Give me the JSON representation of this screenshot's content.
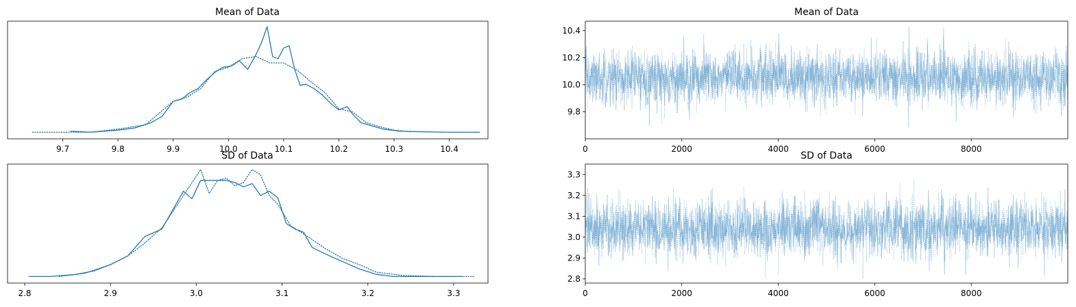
{
  "chart_data": [
    {
      "type": "line",
      "subtype": "density",
      "title": "Mean of Data",
      "xlim": [
        9.6,
        10.47
      ],
      "xticks": [
        9.7,
        9.8,
        9.9,
        10.0,
        10.1,
        10.2,
        10.3,
        10.4
      ],
      "xtick_labels": [
        "9.7",
        "9.8",
        "9.9",
        "10.0",
        "10.1",
        "10.2",
        "10.3",
        "10.4"
      ],
      "yaxis_visible": false,
      "color": "#1f77b4",
      "series": [
        {
          "linestyle": "solid",
          "x": [
            9.714,
            9.75,
            9.8,
            9.83,
            9.86,
            9.88,
            9.9,
            9.915,
            9.93,
            9.945,
            9.96,
            9.975,
            9.99,
            10.005,
            10.02,
            10.035,
            10.05,
            10.06,
            10.07,
            10.08,
            10.09,
            10.1,
            10.11,
            10.12,
            10.13,
            10.14,
            10.155,
            10.17,
            10.185,
            10.2,
            10.215,
            10.225,
            10.24,
            10.26,
            10.28,
            10.31,
            10.35,
            10.4,
            10.455
          ],
          "y": [
            0.02,
            0.01,
            0.03,
            0.05,
            0.1,
            0.16,
            0.3,
            0.32,
            0.38,
            0.42,
            0.5,
            0.57,
            0.62,
            0.63,
            0.68,
            0.6,
            0.74,
            0.85,
            1.0,
            0.72,
            0.7,
            0.8,
            0.82,
            0.6,
            0.45,
            0.46,
            0.42,
            0.36,
            0.28,
            0.22,
            0.25,
            0.18,
            0.1,
            0.07,
            0.04,
            0.02,
            0.015,
            0.01,
            0.01
          ]
        },
        {
          "linestyle": "dotted",
          "x": [
            9.645,
            9.7,
            9.75,
            9.8,
            9.85,
            9.9,
            9.925,
            9.95,
            9.975,
            10.0,
            10.025,
            10.05,
            10.075,
            10.1,
            10.125,
            10.15,
            10.175,
            10.2,
            10.225,
            10.25,
            10.275,
            10.3,
            10.33
          ],
          "y": [
            0.01,
            0.01,
            0.01,
            0.04,
            0.08,
            0.3,
            0.34,
            0.42,
            0.58,
            0.62,
            0.7,
            0.72,
            0.66,
            0.66,
            0.59,
            0.48,
            0.38,
            0.23,
            0.2,
            0.1,
            0.06,
            0.03,
            0.015
          ]
        }
      ]
    },
    {
      "type": "line",
      "subtype": "trace",
      "title": "Mean of Data",
      "xlim": [
        0,
        10000
      ],
      "xticks": [
        0,
        2000,
        4000,
        6000,
        8000
      ],
      "xtick_labels": [
        "0",
        "2000",
        "4000",
        "6000",
        "8000"
      ],
      "ylim": [
        9.6,
        10.47
      ],
      "yticks": [
        9.8,
        10.0,
        10.2,
        10.4
      ],
      "ytick_labels": [
        "9.8",
        "10.0",
        "10.2",
        "10.4"
      ],
      "color": "#1f77b4",
      "draws": 10000,
      "chains": 2,
      "center": 10.05,
      "sd": 0.1,
      "min": 9.645,
      "max": 10.455
    },
    {
      "type": "line",
      "subtype": "density",
      "title": "SD of Data",
      "xlim": [
        2.78,
        3.34
      ],
      "xticks": [
        2.8,
        2.9,
        3.0,
        3.1,
        3.2,
        3.3
      ],
      "xtick_labels": [
        "2.8",
        "2.9",
        "3.0",
        "3.1",
        "3.2",
        "3.3"
      ],
      "yaxis_visible": false,
      "color": "#1f77b4",
      "series": [
        {
          "linestyle": "solid",
          "x": [
            2.805,
            2.83,
            2.86,
            2.88,
            2.9,
            2.92,
            2.94,
            2.96,
            2.975,
            2.985,
            2.995,
            3.005,
            3.02,
            3.035,
            3.045,
            3.055,
            3.065,
            3.075,
            3.085,
            3.095,
            3.105,
            3.115,
            3.125,
            3.135,
            3.15,
            3.17,
            3.19,
            3.21,
            3.23,
            3.26,
            3.31
          ],
          "y": [
            0.01,
            0.01,
            0.03,
            0.06,
            0.12,
            0.2,
            0.38,
            0.45,
            0.66,
            0.8,
            0.73,
            0.9,
            0.9,
            0.9,
            0.88,
            0.84,
            0.87,
            0.76,
            0.8,
            0.74,
            0.5,
            0.45,
            0.42,
            0.28,
            0.22,
            0.15,
            0.08,
            0.03,
            0.01,
            0.01,
            0.01
          ]
        },
        {
          "linestyle": "dotted",
          "x": [
            2.84,
            2.87,
            2.9,
            2.92,
            2.94,
            2.96,
            2.98,
            2.995,
            3.005,
            3.015,
            3.025,
            3.035,
            3.045,
            3.055,
            3.065,
            3.075,
            3.085,
            3.095,
            3.11,
            3.13,
            3.15,
            3.17,
            3.19,
            3.21,
            3.24,
            3.28,
            3.325
          ],
          "y": [
            0.01,
            0.04,
            0.12,
            0.2,
            0.32,
            0.46,
            0.7,
            0.88,
            1.0,
            0.78,
            0.9,
            0.92,
            0.85,
            0.88,
            1.0,
            0.95,
            0.76,
            0.68,
            0.48,
            0.38,
            0.27,
            0.18,
            0.12,
            0.05,
            0.02,
            0.01,
            0.01
          ]
        }
      ]
    },
    {
      "type": "line",
      "subtype": "trace",
      "title": "SD of Data",
      "xlim": [
        0,
        10000
      ],
      "xticks": [
        0,
        2000,
        4000,
        6000,
        8000
      ],
      "xtick_labels": [
        "0",
        "2000",
        "4000",
        "6000",
        "8000"
      ],
      "ylim": [
        2.78,
        3.35
      ],
      "yticks": [
        2.8,
        2.9,
        3.0,
        3.1,
        3.2,
        3.3
      ],
      "ytick_labels": [
        "2.8",
        "2.9",
        "3.0",
        "3.1",
        "3.2",
        "3.3"
      ],
      "color": "#1f77b4",
      "draws": 10000,
      "chains": 2,
      "center": 3.04,
      "sd": 0.07,
      "min": 2.8,
      "max": 3.33
    }
  ]
}
